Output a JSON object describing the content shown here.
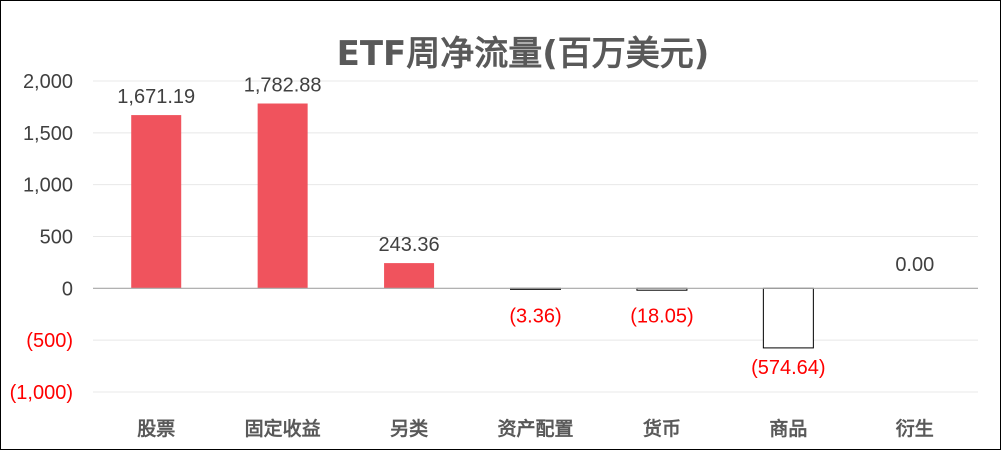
{
  "chart_data": {
    "type": "bar",
    "title": "ETF周净流量(百万美元)",
    "categories": [
      "股票",
      "固定收益",
      "另类",
      "资产配置",
      "货币",
      "商品",
      "衍生"
    ],
    "values": [
      1671.19,
      1782.88,
      243.36,
      -3.36,
      -18.05,
      -574.64,
      0.0
    ],
    "data_labels": [
      "1,671.19",
      "1,782.88",
      "243.36",
      "(3.36)",
      "(18.05)",
      "(574.64)",
      "0.00"
    ],
    "ylim": [
      -1000,
      2000
    ],
    "yticks": [
      2000,
      1500,
      1000,
      500,
      0,
      -500,
      -1000
    ],
    "ytick_labels": [
      "2,000",
      "1,500",
      "1,000",
      "500",
      "0",
      "(500)",
      "(1,000)"
    ],
    "xlabel": "",
    "ylabel": "",
    "grid": true,
    "legend": "none",
    "colors": {
      "positive_bar": "#f0535d",
      "negative_bar_fill": "#ffffff",
      "negative_bar_stroke": "#000000",
      "positive_text": "#404040",
      "negative_text": "#ff0000",
      "title": "#595959"
    }
  }
}
